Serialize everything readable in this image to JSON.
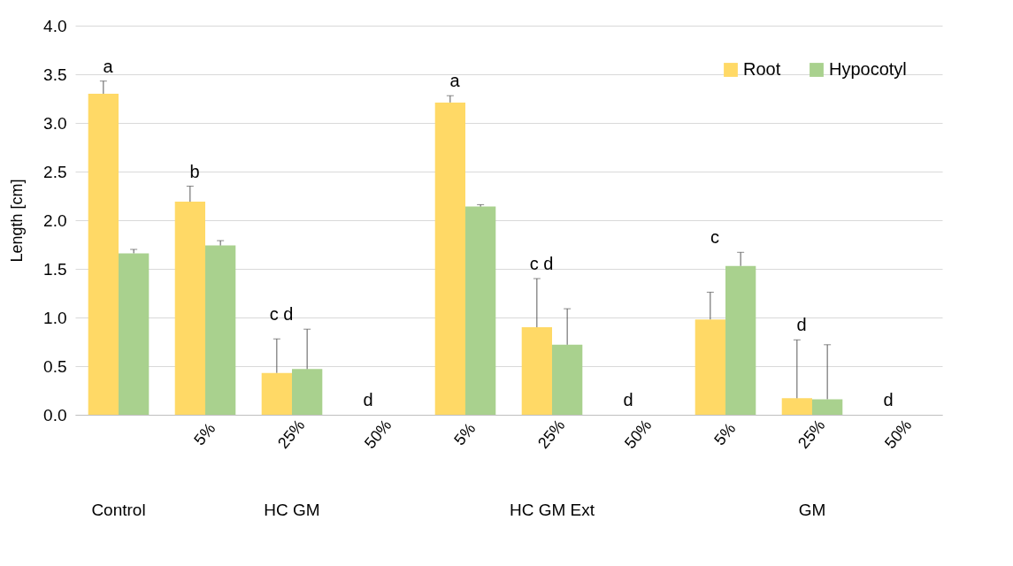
{
  "chart_data": {
    "type": "bar",
    "ylabel": "Length [cm]",
    "categories": [
      null,
      "5%",
      "25%",
      "50%",
      "5%",
      "25%",
      "50%",
      "5%",
      "25%",
      "50%"
    ],
    "series": [
      {
        "name": "Root",
        "color": "#ffd966",
        "values": [
          3.3,
          2.19,
          0.43,
          0,
          3.21,
          0.9,
          0,
          0.98,
          0.17,
          0
        ],
        "errors": [
          [
            3.3,
            3.43
          ],
          [
            2.19,
            2.35
          ],
          [
            0.43,
            0.78
          ],
          null,
          [
            3.21,
            3.28
          ],
          [
            0.9,
            1.4
          ],
          null,
          [
            0.98,
            1.26
          ],
          [
            0.17,
            0.77
          ],
          null
        ]
      },
      {
        "name": "Hypocotyl",
        "color": "#a9d18e",
        "values": [
          1.66,
          1.74,
          0.47,
          0,
          2.14,
          0.72,
          0,
          1.53,
          0.16,
          0
        ],
        "errors": [
          [
            1.66,
            1.7
          ],
          [
            1.74,
            1.79
          ],
          [
            0.47,
            0.88
          ],
          null,
          [
            2.14,
            2.16
          ],
          [
            0.72,
            1.09
          ],
          null,
          [
            1.53,
            1.67
          ],
          [
            0.16,
            0.72
          ],
          null
        ]
      }
    ],
    "ylim": [
      0,
      4
    ],
    "yticks": [
      {
        "value": 0,
        "label": "0.0"
      },
      {
        "value": 0.5,
        "label": "0.5"
      },
      {
        "value": 1,
        "label": "1.0"
      },
      {
        "value": 1.5,
        "label": "1.5"
      },
      {
        "value": 2,
        "label": "2.0"
      },
      {
        "value": 2.5,
        "label": "2.5"
      },
      {
        "value": 3,
        "label": "3.0"
      },
      {
        "value": 3.5,
        "label": "3.5"
      },
      {
        "value": 4,
        "label": "4.0"
      }
    ],
    "grid": "y",
    "legend": "top right",
    "annotations": [
      "a",
      "b",
      "c d",
      "d",
      "a",
      "c d",
      "d",
      "c",
      "d",
      "d",
      "Control",
      "HC  GM",
      "HC  GM  Ext",
      "GM"
    ]
  }
}
